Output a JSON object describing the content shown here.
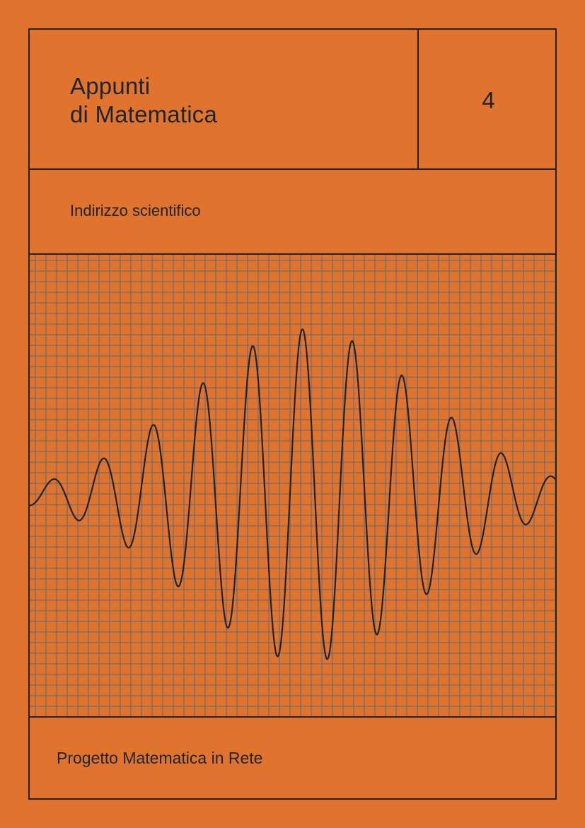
{
  "cover": {
    "title": "Appunti\ndi Matematica",
    "volume": "4",
    "subject": "Indirizzo scientifico",
    "footer": "Progetto Matematica in Rete"
  },
  "colors": {
    "background": "#e0742e",
    "ink": "#1c2530",
    "grid": "#596a7a"
  },
  "illustration": {
    "type": "wave-packet",
    "grid": true
  }
}
